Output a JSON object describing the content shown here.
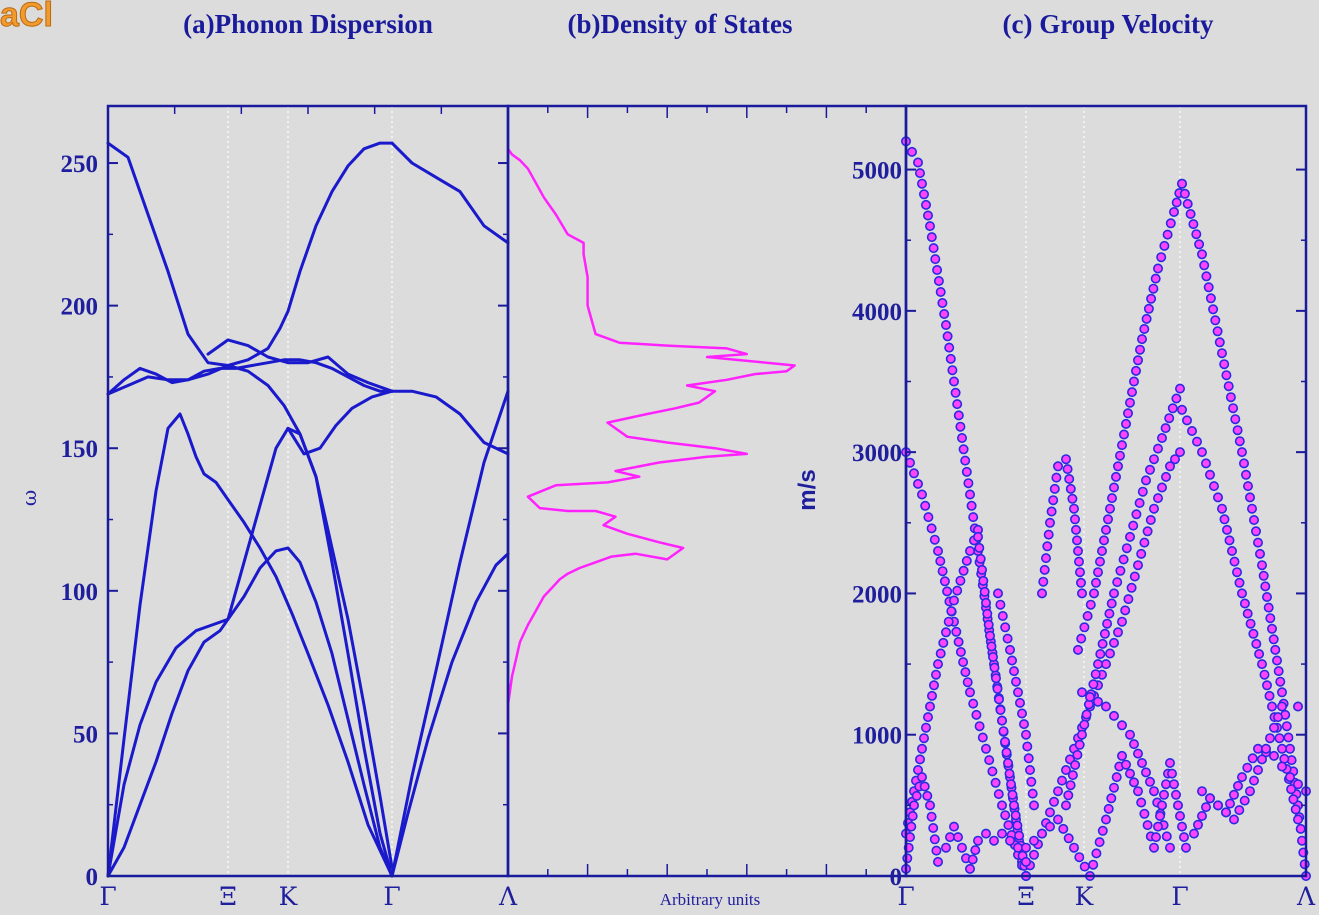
{
  "figure": {
    "corner_label": "aCl"
  },
  "colors": {
    "background": "#dcdcdc",
    "axis": "#1a1a9c",
    "dispersion_line": "#1a1acc",
    "dos_line": "#ff22ff",
    "marker_fill": "#ff44ff",
    "marker_edge": "#2a2ae0"
  },
  "chart_data": [
    {
      "id": "phonon-dispersion",
      "type": "line",
      "title": "(a)Phonon Dispersion",
      "xlabel": "",
      "ylabel": "ω",
      "xlim": [
        0,
        1
      ],
      "ylim": [
        0,
        270
      ],
      "yticks": [
        0,
        50,
        100,
        150,
        200,
        250
      ],
      "xticks": [
        {
          "label": "Γ",
          "x": 0.0
        },
        {
          "label": "Ξ",
          "x": 0.3
        },
        {
          "label": "K",
          "x": 0.45
        },
        {
          "label": "Γ",
          "x": 0.71
        },
        {
          "label": "Λ",
          "x": 1.0
        }
      ],
      "grid": "vertical-dotted",
      "series": [
        {
          "x": [
            0,
            0.04,
            0.08,
            0.12,
            0.17,
            0.22,
            0.26,
            0.3,
            0.34,
            0.38,
            0.42,
            0.45,
            0.48,
            0.52,
            0.56,
            0.6,
            0.64,
            0.68,
            0.71
          ],
          "values": [
            0,
            32,
            53,
            68,
            80,
            86,
            88,
            90,
            98,
            108,
            114,
            115,
            110,
            96,
            78,
            55,
            32,
            10,
            0
          ]
        },
        {
          "x": [
            0.71,
            0.75,
            0.8,
            0.86,
            0.92,
            0.97,
            1.0
          ],
          "values": [
            0,
            22,
            48,
            75,
            96,
            109,
            113
          ]
        },
        {
          "x": [
            0,
            0.04,
            0.08,
            0.12,
            0.15,
            0.18,
            0.2,
            0.22,
            0.24,
            0.27,
            0.3,
            0.34,
            0.38,
            0.42,
            0.46,
            0.5,
            0.55,
            0.6,
            0.65,
            0.71
          ],
          "values": [
            0,
            48,
            95,
            135,
            157,
            162,
            155,
            147,
            141,
            138,
            132,
            124,
            115,
            105,
            92,
            78,
            60,
            40,
            18,
            0
          ]
        },
        {
          "x": [
            0.71,
            0.76,
            0.82,
            0.88,
            0.94,
            1.0
          ],
          "values": [
            0,
            35,
            72,
            110,
            145,
            170
          ]
        },
        {
          "x": [
            0,
            0.04,
            0.08,
            0.12,
            0.16,
            0.2,
            0.24,
            0.28,
            0.3,
            0.34,
            0.38,
            0.42,
            0.45,
            0.48,
            0.52,
            0.56,
            0.6,
            0.64,
            0.68,
            0.71
          ],
          "values": [
            0,
            10,
            25,
            40,
            57,
            72,
            82,
            86,
            90,
            110,
            130,
            150,
            157,
            155,
            140,
            110,
            78,
            45,
            15,
            0
          ]
        },
        {
          "x": [
            0,
            0.05,
            0.1,
            0.15,
            0.2,
            0.25,
            0.3,
            0.35,
            0.4,
            0.44,
            0.48,
            0.52,
            0.56,
            0.6,
            0.64,
            0.68,
            0.71
          ],
          "values": [
            257,
            252,
            232,
            212,
            190,
            180,
            179,
            177,
            172,
            165,
            155,
            140,
            115,
            90,
            60,
            28,
            3
          ]
        },
        {
          "x": [
            0,
            0.04,
            0.08,
            0.12,
            0.16,
            0.2,
            0.24,
            0.28,
            0.32,
            0.36,
            0.4,
            0.44,
            0.48,
            0.52,
            0.56,
            0.6,
            0.64,
            0.68,
            0.71
          ],
          "values": [
            169,
            174,
            178,
            176,
            173,
            174,
            177,
            178,
            178,
            179,
            180,
            181,
            181,
            180,
            178,
            175,
            172,
            170,
            170
          ]
        },
        {
          "x": [
            0.71,
            0.76,
            0.82,
            0.88,
            0.94,
            1.0
          ],
          "values": [
            170,
            170,
            168,
            162,
            152,
            148
          ]
        },
        {
          "x": [
            0,
            0.05,
            0.1,
            0.15,
            0.2,
            0.25,
            0.3,
            0.35,
            0.4,
            0.43,
            0.45,
            0.48,
            0.52,
            0.56,
            0.6,
            0.64,
            0.68,
            0.71
          ],
          "values": [
            169,
            172,
            175,
            174,
            174,
            176,
            179,
            181,
            185,
            192,
            198,
            212,
            228,
            240,
            249,
            255,
            257,
            257
          ]
        },
        {
          "x": [
            0.71,
            0.76,
            0.82,
            0.88,
            0.94,
            1.0
          ],
          "values": [
            257,
            250,
            245,
            240,
            228,
            222
          ]
        },
        {
          "x": [
            0.25,
            0.3,
            0.35,
            0.4,
            0.45,
            0.5,
            0.55,
            0.6,
            0.65,
            0.71
          ],
          "values": [
            183,
            188,
            186,
            182,
            180,
            180,
            182,
            176,
            173,
            170
          ]
        },
        {
          "x": [
            0.45,
            0.49,
            0.53,
            0.57,
            0.61,
            0.66,
            0.71
          ],
          "values": [
            157,
            148,
            150,
            158,
            164,
            168,
            170
          ]
        }
      ]
    },
    {
      "id": "density-of-states",
      "type": "line",
      "title": "(b)Density of States",
      "xlabel": "Arbitrary units",
      "ylabel": "",
      "xlim": [
        0,
        1
      ],
      "ylim": [
        0,
        270
      ],
      "grid": "none",
      "series": [
        {
          "x": [
            0.0,
            0.0,
            0.01,
            0.02,
            0.03,
            0.05,
            0.07,
            0.09,
            0.11,
            0.13,
            0.15,
            0.18,
            0.22,
            0.26,
            0.32,
            0.4,
            0.44,
            0.38,
            0.3,
            0.24,
            0.27,
            0.22,
            0.15,
            0.08,
            0.05,
            0.12,
            0.25,
            0.33,
            0.27,
            0.38,
            0.5,
            0.6,
            0.52,
            0.4,
            0.3,
            0.25,
            0.35,
            0.42,
            0.48,
            0.52,
            0.45,
            0.55,
            0.62,
            0.7,
            0.72,
            0.65,
            0.5,
            0.6,
            0.55,
            0.4,
            0.28,
            0.22,
            0.2,
            0.2,
            0.19,
            0.19,
            0.15,
            0.12,
            0.09,
            0.07,
            0.05,
            0.03,
            0.01,
            0.0
          ],
          "values": [
            45,
            60,
            70,
            76,
            82,
            88,
            93,
            98,
            101,
            104,
            106,
            108,
            110,
            112,
            113,
            111,
            115,
            117,
            120,
            123,
            126,
            128,
            128,
            129,
            133,
            137,
            138,
            140,
            142,
            145,
            147,
            148,
            150,
            152,
            154,
            159,
            162,
            164,
            166,
            170,
            172,
            174,
            176,
            177,
            179,
            180,
            182,
            183,
            185,
            186,
            187,
            190,
            200,
            210,
            218,
            222,
            225,
            232,
            238,
            243,
            248,
            251,
            253,
            255
          ]
        }
      ]
    },
    {
      "id": "group-velocity",
      "type": "scatter",
      "title": "(c) Group Velocity",
      "xlabel": "",
      "ylabel": "m/s",
      "xlim": [
        0,
        1
      ],
      "ylim": [
        0,
        5450
      ],
      "yticks": [
        0,
        1000,
        2000,
        3000,
        4000,
        5000
      ],
      "xticks": [
        {
          "label": "Γ",
          "x": 0.0
        },
        {
          "label": "Ξ",
          "x": 0.3
        },
        {
          "label": "K",
          "x": 0.445
        },
        {
          "label": "Γ",
          "x": 0.685
        },
        {
          "label": "Λ",
          "x": 1.0
        }
      ],
      "grid": "vertical-dotted",
      "series": [
        {
          "x": [
            0.0,
            0.03,
            0.06,
            0.1,
            0.14,
            0.18,
            0.22,
            0.26,
            0.29
          ],
          "values": [
            5200,
            5050,
            4600,
            3900,
            3100,
            2300,
            1500,
            700,
            100
          ]
        },
        {
          "x": [
            0.0,
            0.04,
            0.08,
            0.12,
            0.16,
            0.2,
            0.24,
            0.28,
            0.3
          ],
          "values": [
            3000,
            2700,
            2300,
            1800,
            1300,
            900,
            500,
            150,
            0
          ]
        },
        {
          "x": [
            0.0,
            0.04,
            0.08,
            0.12,
            0.16,
            0.18
          ],
          "values": [
            300,
            900,
            1500,
            1950,
            2300,
            2450
          ]
        },
        {
          "x": [
            0.18,
            0.21,
            0.24,
            0.27,
            0.3
          ],
          "values": [
            2400,
            1700,
            1100,
            500,
            0
          ]
        },
        {
          "x": [
            0.23,
            0.26,
            0.28,
            0.3,
            0.32
          ],
          "values": [
            2000,
            1600,
            1300,
            1000,
            500
          ]
        },
        {
          "x": [
            0.34,
            0.36,
            0.38,
            0.4,
            0.42,
            0.44
          ],
          "values": [
            2000,
            2500,
            2900,
            2950,
            2600,
            2000
          ]
        },
        {
          "x": [
            0.3,
            0.34,
            0.38,
            0.42,
            0.46,
            0.5,
            0.54,
            0.58,
            0.62,
            0.66,
            0.685
          ],
          "values": [
            0,
            300,
            600,
            900,
            1200,
            1500,
            1800,
            2200,
            2600,
            2900,
            3000
          ]
        },
        {
          "x": [
            0.4,
            0.44,
            0.48,
            0.52,
            0.56,
            0.6,
            0.64,
            0.685
          ],
          "values": [
            500,
            1000,
            1500,
            2000,
            2400,
            2800,
            3100,
            3450
          ]
        },
        {
          "x": [
            0.43,
            0.47,
            0.51,
            0.55,
            0.59,
            0.63,
            0.67,
            0.69
          ],
          "values": [
            1600,
            2000,
            2600,
            3200,
            3800,
            4300,
            4700,
            4900
          ]
        },
        {
          "x": [
            0.69,
            0.74,
            0.79,
            0.84,
            0.89,
            0.94,
            0.98,
            1.0
          ],
          "values": [
            4900,
            4400,
            3700,
            3000,
            2200,
            1300,
            500,
            0
          ]
        },
        {
          "x": [
            0.69,
            0.74,
            0.79,
            0.84,
            0.89,
            0.94,
            0.98
          ],
          "values": [
            3300,
            3000,
            2600,
            2000,
            1500,
            900,
            400
          ]
        },
        {
          "x": [
            0.44,
            0.5,
            0.56,
            0.62,
            0.66
          ],
          "values": [
            1300,
            1200,
            1000,
            600,
            200
          ]
        },
        {
          "x": [
            0.0,
            0.02,
            0.04,
            0.06,
            0.08,
            0.1,
            0.12,
            0.14,
            0.16,
            0.18,
            0.2,
            0.22,
            0.24,
            0.26,
            0.28,
            0.3
          ],
          "values": [
            50,
            500,
            700,
            500,
            100,
            200,
            350,
            200,
            50,
            250,
            300,
            250,
            300,
            250,
            200,
            100
          ]
        },
        {
          "x": [
            0.3,
            0.34,
            0.38,
            0.42,
            0.46,
            0.5,
            0.54,
            0.58,
            0.62,
            0.66,
            0.7
          ],
          "values": [
            200,
            300,
            400,
            200,
            0,
            400,
            850,
            600,
            200,
            800,
            200
          ]
        },
        {
          "x": [
            0.72,
            0.76,
            0.8,
            0.84,
            0.88,
            0.92,
            0.96,
            1.0
          ],
          "values": [
            300,
            550,
            450,
            700,
            900,
            850,
            700,
            600
          ]
        },
        {
          "x": [
            0.74,
            0.78,
            0.82,
            0.86,
            0.9,
            0.94,
            0.98
          ],
          "values": [
            600,
            500,
            400,
            600,
            900,
            1200,
            1200
          ]
        }
      ]
    }
  ]
}
